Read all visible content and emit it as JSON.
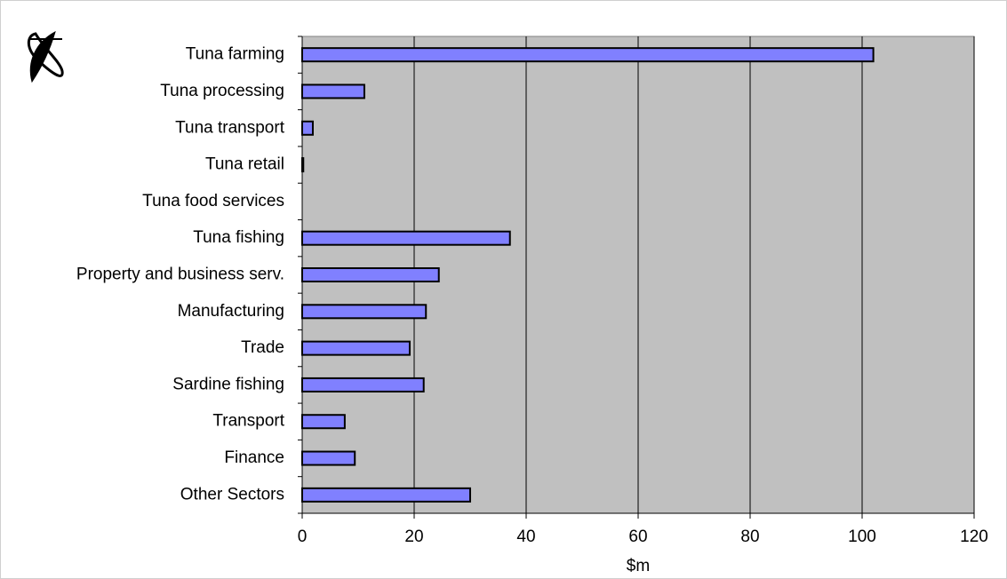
{
  "chart_data": {
    "type": "hbar",
    "categories": [
      "Tuna farming",
      "Tuna processing",
      "Tuna transport",
      "Tuna retail",
      "Tuna food services",
      "Tuna fishing",
      "Property and business serv.",
      "Manufacturing",
      "Trade",
      "Sardine fishing",
      "Transport",
      "Finance",
      "Other Sectors"
    ],
    "values": [
      102,
      11.1,
      1.9,
      0.2,
      0,
      37.1,
      24.4,
      22.1,
      19.2,
      21.7,
      7.6,
      9.4,
      30
    ],
    "color": "#8080ff",
    "xlabel": "$m",
    "xlim": [
      0,
      120
    ],
    "xticks": [
      0,
      20,
      40,
      60,
      80,
      100,
      120
    ],
    "grid": true,
    "plot_background": "#c0c0c0"
  }
}
